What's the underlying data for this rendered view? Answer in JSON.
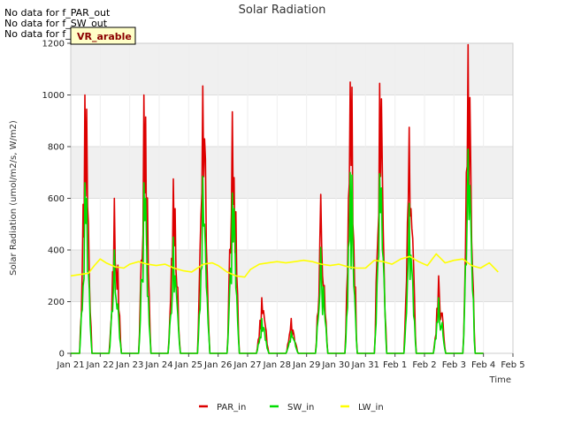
{
  "notes": [
    "No data for f_PAR_out",
    "No data for f_SW_out",
    "No data for f_LW_out"
  ],
  "site_badge": "VR_arable",
  "chart_data": {
    "type": "line",
    "title": "Solar Radiation",
    "xlabel": "Time",
    "ylabel": "Solar Radiation (umol/m2/s, W/m2)",
    "ylim": [
      0,
      1200
    ],
    "xlim_days": [
      0,
      15
    ],
    "y_ticks": [
      0,
      200,
      400,
      600,
      800,
      1000,
      1200
    ],
    "x_ticks": [
      "Jan 21",
      "Jan 22",
      "Jan 23",
      "Jan 24",
      "Jan 25",
      "Jan 26",
      "Jan 27",
      "Jan 28",
      "Jan 29",
      "Jan 30",
      "Jan 31",
      "Feb 1",
      "Feb 2",
      "Feb 3",
      "Feb 4",
      "Feb 5"
    ],
    "grid": true,
    "legend_position": "bottom-center",
    "series": [
      {
        "name": "PAR_in",
        "color": "#dd0000",
        "daily_peaks": [
          1000,
          600,
          1000,
          675,
          1035,
          935,
          215,
          135,
          615,
          1050,
          1045,
          875,
          300,
          1195
        ],
        "secondary_peaks": [
          945,
          320,
          915,
          560,
          830,
          680,
          165,
          90,
          300,
          1030,
          985,
          560,
          130,
          990
        ]
      },
      {
        "name": "SW_in",
        "color": "#00dd00",
        "daily_peaks": [
          660,
          400,
          660,
          450,
          685,
          620,
          135,
          85,
          410,
          700,
          695,
          580,
          215,
          790
        ],
        "secondary_peaks": [
          600,
          210,
          600,
          300,
          500,
          560,
          100,
          60,
          150,
          690,
          640,
          380,
          90,
          650
        ]
      },
      {
        "name": "LW_in",
        "color": "#ffff00",
        "x_days": [
          0,
          0.3,
          0.6,
          0.8,
          1.0,
          1.2,
          1.5,
          1.8,
          2.0,
          2.3,
          2.6,
          2.9,
          3.2,
          3.5,
          3.8,
          4.1,
          4.5,
          4.8,
          5.0,
          5.3,
          5.6,
          5.9,
          6.1,
          6.4,
          6.7,
          7.0,
          7.3,
          7.6,
          7.9,
          8.2,
          8.5,
          8.8,
          9.1,
          9.4,
          9.7,
          10.0,
          10.3,
          10.6,
          10.9,
          11.2,
          11.5,
          11.8,
          12.1,
          12.4,
          12.7,
          13.0,
          13.3,
          13.6,
          13.9,
          14.2,
          14.5
        ],
        "values": [
          300,
          305,
          310,
          340,
          365,
          350,
          335,
          330,
          345,
          355,
          345,
          340,
          345,
          330,
          320,
          315,
          345,
          350,
          340,
          315,
          300,
          295,
          325,
          345,
          350,
          355,
          350,
          355,
          360,
          355,
          345,
          340,
          345,
          335,
          330,
          330,
          360,
          355,
          345,
          365,
          375,
          355,
          340,
          385,
          350,
          360,
          365,
          340,
          330,
          350,
          315
        ]
      }
    ]
  }
}
